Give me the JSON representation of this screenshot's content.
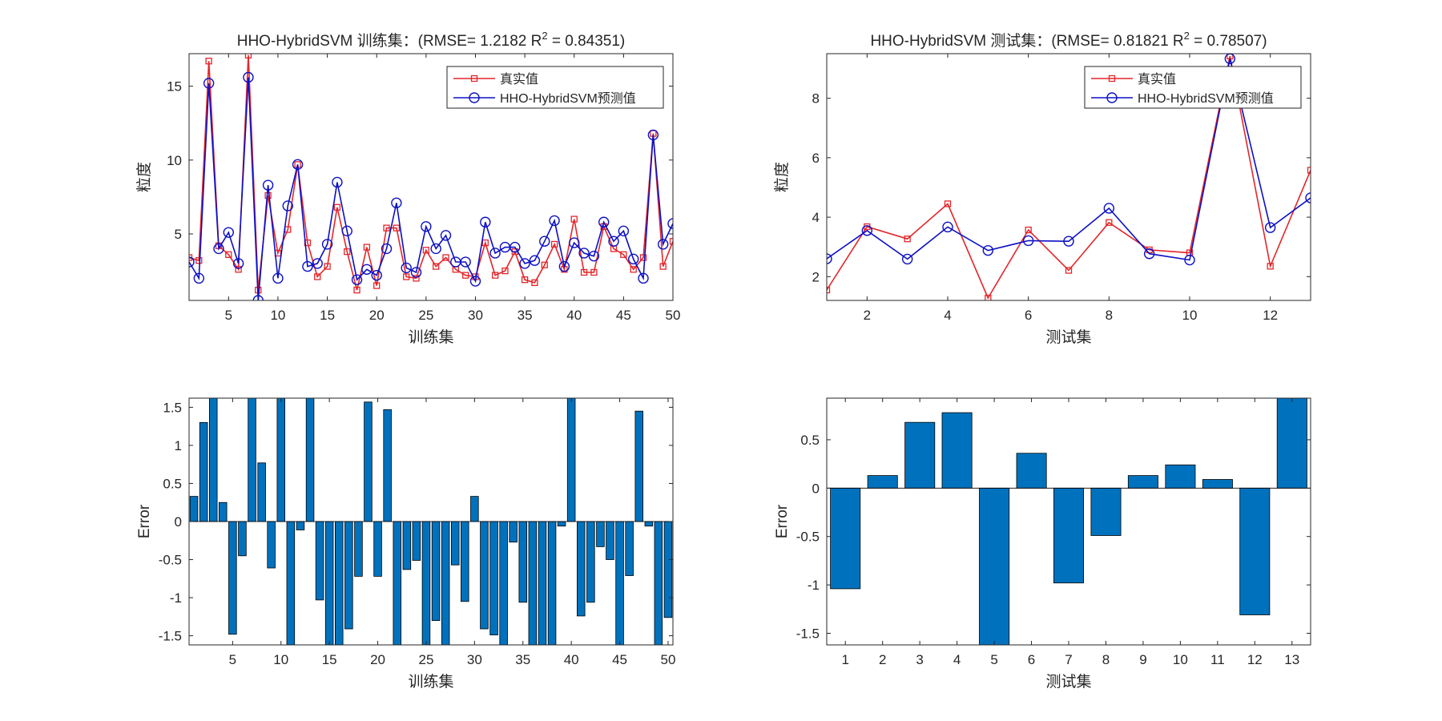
{
  "colors": {
    "true_line": "#e3262a",
    "pred_line": "#0c10c4",
    "bar_fill": "#0072bd",
    "axis": "#262626",
    "background": "#ffffff"
  },
  "chart_data": [
    {
      "id": "train_compare",
      "type": "line",
      "title": "HHO-HybridSVM 训练集：(RMSE= 1.2182 R",
      "title_sup": "2",
      "title_tail": " = 0.84351)",
      "xlabel": "训练集",
      "ylabel": "粒度",
      "xlim": [
        1,
        50
      ],
      "ylim": [
        0.5,
        17.2
      ],
      "xticks": [
        5,
        10,
        15,
        20,
        25,
        30,
        35,
        40,
        45,
        50
      ],
      "yticks": [
        5,
        10,
        15
      ],
      "legend": {
        "position": "top-right",
        "entries": [
          "真实值",
          "HHO-HybridSVM预测值"
        ]
      },
      "x": [
        1,
        2,
        3,
        4,
        5,
        6,
        7,
        8,
        9,
        10,
        11,
        12,
        13,
        14,
        15,
        16,
        17,
        18,
        19,
        20,
        21,
        22,
        23,
        24,
        25,
        26,
        27,
        28,
        29,
        30,
        31,
        32,
        33,
        34,
        35,
        36,
        37,
        38,
        39,
        40,
        41,
        42,
        43,
        44,
        45,
        46,
        47,
        48,
        49,
        50
      ],
      "series": [
        {
          "name": "真实值",
          "marker": "square",
          "values": [
            3.4,
            3.2,
            16.7,
            4.2,
            3.6,
            2.6,
            17.1,
            1.2,
            7.6,
            3.7,
            5.3,
            9.7,
            4.4,
            2.1,
            2.8,
            6.8,
            3.8,
            1.2,
            4.1,
            1.5,
            5.4,
            5.4,
            2.1,
            2.0,
            3.9,
            2.8,
            3.4,
            2.6,
            2.2,
            2.1,
            4.4,
            2.2,
            2.5,
            3.8,
            1.9,
            1.7,
            2.9,
            4.3,
            2.6,
            6.0,
            2.4,
            2.4,
            5.5,
            4.0,
            3.6,
            2.6,
            3.4,
            11.8,
            2.8,
            4.5
          ]
        },
        {
          "name": "HHO-HybridSVM预测值",
          "marker": "circle",
          "values": [
            3.1,
            2.0,
            15.2,
            4.0,
            5.1,
            3.0,
            15.6,
            0.5,
            8.3,
            2.0,
            6.9,
            9.7,
            2.8,
            3.0,
            4.3,
            8.5,
            5.2,
            1.9,
            2.6,
            2.2,
            4.0,
            7.1,
            2.7,
            2.4,
            5.5,
            4.0,
            4.9,
            3.1,
            3.1,
            1.8,
            5.8,
            3.7,
            4.1,
            4.1,
            3.0,
            3.2,
            4.5,
            5.9,
            2.8,
            4.4,
            3.7,
            3.5,
            5.8,
            4.5,
            5.2,
            3.3,
            2.0,
            11.7,
            4.3,
            5.7
          ]
        }
      ]
    },
    {
      "id": "test_compare",
      "type": "line",
      "title": "HHO-HybridSVM 测试集：(RMSE= 0.81821 R",
      "title_sup": "2",
      "title_tail": " = 0.78507)",
      "xlabel": "测试集",
      "ylabel": "粒度",
      "xlim": [
        1,
        13
      ],
      "ylim": [
        1.2,
        9.5
      ],
      "xticks": [
        2,
        4,
        6,
        8,
        10,
        12
      ],
      "yticks": [
        2,
        4,
        6,
        8
      ],
      "legend": {
        "position": "top-right",
        "entries": [
          "真实值",
          "HHO-HybridSVM预测值"
        ]
      },
      "x": [
        1,
        2,
        3,
        4,
        5,
        6,
        7,
        8,
        9,
        10,
        11,
        12,
        13
      ],
      "series": [
        {
          "name": "真实值",
          "marker": "square",
          "values": [
            1.55,
            3.68,
            3.27,
            4.45,
            1.28,
            3.57,
            2.21,
            3.82,
            2.9,
            2.8,
            9.42,
            2.35,
            5.58
          ]
        },
        {
          "name": "HHO-HybridSVM预测值",
          "marker": "circle",
          "values": [
            2.6,
            3.55,
            2.59,
            3.67,
            2.88,
            3.21,
            3.19,
            4.3,
            2.77,
            2.56,
            9.33,
            3.65,
            4.65
          ]
        }
      ]
    },
    {
      "id": "train_error",
      "type": "bar",
      "title": "",
      "xlabel": "训练集",
      "ylabel": "Error",
      "xlim": [
        0.5,
        50.5
      ],
      "ylim": [
        -1.62,
        1.62
      ],
      "xticks": [
        5,
        10,
        15,
        20,
        25,
        30,
        35,
        40,
        45,
        50
      ],
      "yticks": [
        -1.5,
        -1,
        -0.5,
        0,
        0.5,
        1,
        1.5
      ],
      "ytick_labels": [
        "-1.5",
        "-1",
        "-0.5",
        "0",
        "0.5",
        "1",
        "1.5"
      ],
      "categories": [
        1,
        2,
        3,
        4,
        5,
        6,
        7,
        8,
        9,
        10,
        11,
        12,
        13,
        14,
        15,
        16,
        17,
        18,
        19,
        20,
        21,
        22,
        23,
        24,
        25,
        26,
        27,
        28,
        29,
        30,
        31,
        32,
        33,
        34,
        35,
        36,
        37,
        38,
        39,
        40,
        41,
        42,
        43,
        44,
        45,
        46,
        47,
        48,
        49,
        50
      ],
      "values": [
        0.33,
        1.3,
        1.62,
        0.25,
        -1.48,
        -0.45,
        1.62,
        0.77,
        -0.61,
        1.62,
        -1.62,
        -0.11,
        1.62,
        -1.03,
        -1.62,
        -1.62,
        -1.41,
        -0.72,
        1.57,
        -0.72,
        1.47,
        -1.62,
        -0.63,
        -0.51,
        -1.62,
        -1.3,
        -1.62,
        -0.57,
        -1.05,
        0.33,
        -1.41,
        -1.49,
        -1.62,
        -0.27,
        -1.06,
        -1.62,
        -1.62,
        -1.62,
        -0.06,
        1.62,
        -1.24,
        -1.06,
        -0.33,
        -0.5,
        -1.62,
        -0.71,
        1.45,
        -0.06,
        -1.62,
        -1.26
      ]
    },
    {
      "id": "test_error",
      "type": "bar",
      "title": "",
      "xlabel": "测试集",
      "ylabel": "Error",
      "xlim": [
        0.5,
        13.5
      ],
      "ylim": [
        -1.62,
        0.93
      ],
      "xticks": [
        1,
        2,
        3,
        4,
        5,
        6,
        7,
        8,
        9,
        10,
        11,
        12,
        13
      ],
      "yticks": [
        -1.5,
        -1,
        -0.5,
        0,
        0.5
      ],
      "ytick_labels": [
        "-1.5",
        "-1",
        "-0.5",
        "0",
        "0.5"
      ],
      "categories": [
        1,
        2,
        3,
        4,
        5,
        6,
        7,
        8,
        9,
        10,
        11,
        12,
        13
      ],
      "values": [
        -1.04,
        0.13,
        0.68,
        0.78,
        -1.62,
        0.36,
        -0.98,
        -0.49,
        0.13,
        0.24,
        0.09,
        -1.31,
        0.93
      ]
    }
  ]
}
